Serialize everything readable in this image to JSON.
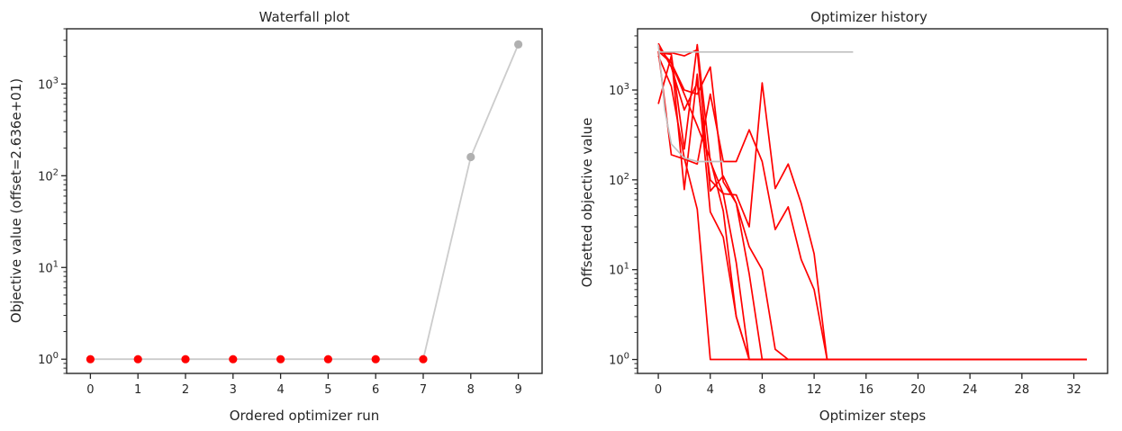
{
  "chart_data": [
    {
      "type": "scatter",
      "title": "Waterfall plot",
      "xlabel": "Ordered optimizer run",
      "ylabel": "Objective value (offset=2.636e+01)",
      "yscale": "log",
      "xlim": [
        -0.5,
        9.5
      ],
      "ylim": [
        0.7,
        4000
      ],
      "xticks": [
        "0",
        "1",
        "2",
        "3",
        "4",
        "5",
        "6",
        "7",
        "8",
        "9"
      ],
      "yticks": [
        {
          "value": 1,
          "label": "10^0"
        },
        {
          "value": 10,
          "label": "10^1"
        },
        {
          "value": 100,
          "label": "10^2"
        },
        {
          "value": 1000,
          "label": "10^3"
        }
      ],
      "line_color": "#cccccc",
      "points": [
        {
          "x": 0,
          "y": 1,
          "color": "#ff0000"
        },
        {
          "x": 1,
          "y": 1,
          "color": "#ff0000"
        },
        {
          "x": 2,
          "y": 1,
          "color": "#ff0000"
        },
        {
          "x": 3,
          "y": 1,
          "color": "#ff0000"
        },
        {
          "x": 4,
          "y": 1,
          "color": "#ff0000"
        },
        {
          "x": 5,
          "y": 1,
          "color": "#ff0000"
        },
        {
          "x": 6,
          "y": 1,
          "color": "#ff0000"
        },
        {
          "x": 7,
          "y": 1,
          "color": "#ff0000"
        },
        {
          "x": 8,
          "y": 160,
          "color": "#b0b0b0"
        },
        {
          "x": 9,
          "y": 2700,
          "color": "#b0b0b0"
        }
      ],
      "grid": false
    },
    {
      "type": "line",
      "title": "Optimizer history",
      "xlabel": "Optimizer steps",
      "ylabel": "Offsetted objective value",
      "yscale": "log",
      "xlim": [
        -1.6,
        34.6
      ],
      "ylim": [
        0.7,
        4800
      ],
      "xticks": [
        "0",
        "4",
        "8",
        "12",
        "16",
        "20",
        "24",
        "28",
        "32"
      ],
      "yticks": [
        {
          "value": 1,
          "label": "10^0"
        },
        {
          "value": 10,
          "label": "10^1"
        },
        {
          "value": 100,
          "label": "10^2"
        },
        {
          "value": 1000,
          "label": "10^3"
        }
      ],
      "grid": false,
      "series": [
        {
          "color": "#ff0000",
          "x": [
            0,
            1,
            2,
            3,
            4,
            5,
            6,
            7,
            8,
            9,
            10,
            11,
            12,
            13,
            14,
            16,
            20,
            24,
            28,
            32,
            33
          ],
          "y": [
            2600,
            2500,
            220,
            3200,
            160,
            70,
            68,
            30,
            1200,
            80,
            150,
            55,
            15,
            1,
            1,
            1,
            1,
            1,
            1,
            1,
            1
          ]
        },
        {
          "color": "#ff0000",
          "x": [
            0,
            1,
            2,
            3,
            4,
            5,
            6,
            7,
            8,
            9,
            10,
            11,
            12,
            13,
            14,
            16,
            20,
            24,
            28,
            32,
            33
          ],
          "y": [
            2700,
            190,
            170,
            150,
            900,
            160,
            160,
            360,
            160,
            28,
            50,
            13,
            6,
            1,
            1,
            1,
            1,
            1,
            1,
            1,
            1
          ]
        },
        {
          "color": "#ff0000",
          "x": [
            0,
            1,
            2,
            3,
            4,
            5,
            6,
            7,
            8,
            9,
            10,
            11,
            12,
            13,
            14,
            16,
            20,
            24,
            28,
            32,
            33
          ],
          "y": [
            2600,
            2600,
            2400,
            2800,
            75,
            110,
            55,
            18,
            10,
            1.3,
            1,
            1,
            1,
            1,
            1,
            1,
            1,
            1,
            1,
            1,
            1
          ]
        },
        {
          "color": "#ff0000",
          "x": [
            0,
            1,
            2,
            3,
            4,
            5,
            6,
            7,
            8,
            9,
            10,
            11,
            12,
            13,
            14,
            16,
            20,
            24,
            28,
            32,
            33
          ],
          "y": [
            700,
            2400,
            78,
            1500,
            44,
            23,
            3,
            1,
            1,
            1,
            1,
            1,
            1,
            1,
            1,
            1,
            1,
            1,
            1,
            1,
            1
          ]
        },
        {
          "color": "#ff0000",
          "x": [
            0,
            1,
            2,
            3,
            4,
            5,
            6,
            7,
            8,
            9,
            10,
            11,
            12,
            13,
            14,
            16,
            20,
            24,
            28,
            32,
            33
          ],
          "y": [
            2400,
            1100,
            175,
            47,
            1,
            1,
            1,
            1,
            1,
            1,
            1,
            1,
            1,
            1,
            1,
            1,
            1,
            1,
            1,
            1,
            1
          ]
        },
        {
          "color": "#ff0000",
          "x": [
            0,
            1,
            2,
            3,
            4,
            5,
            6,
            7,
            8,
            9,
            10,
            11,
            12,
            13,
            14,
            16,
            20,
            24,
            28,
            32,
            33
          ],
          "y": [
            3000,
            2000,
            1000,
            900,
            1800,
            95,
            55,
            9,
            1,
            1,
            1,
            1,
            1,
            1,
            1,
            1,
            1,
            1,
            1,
            1,
            1
          ]
        },
        {
          "color": "#ff0000",
          "x": [
            0,
            1,
            2,
            3,
            4,
            5,
            6,
            7,
            8,
            9,
            10,
            11,
            12,
            13,
            14,
            16,
            20,
            24,
            28,
            32,
            33
          ],
          "y": [
            3300,
            1800,
            600,
            1200,
            100,
            70,
            12,
            1,
            1,
            1,
            1,
            1,
            1,
            1,
            1,
            1,
            1,
            1,
            1,
            1,
            1
          ]
        },
        {
          "color": "#ff0000",
          "x": [
            0,
            1,
            2,
            3,
            4,
            5,
            6,
            7,
            8,
            9,
            10,
            11,
            12,
            13,
            14,
            16,
            20,
            24,
            28,
            29
          ],
          "y": [
            2700,
            2000,
            900,
            400,
            170,
            45,
            3,
            1,
            1,
            1,
            1,
            1,
            1,
            1,
            1,
            1,
            1,
            1,
            1,
            1
          ]
        },
        {
          "color": "#c0c0c0",
          "x": [
            0,
            1,
            2,
            3,
            4,
            5,
            6,
            7,
            8,
            9,
            10,
            11,
            12,
            13,
            14,
            15
          ],
          "y": [
            2650,
            2650,
            2650,
            2650,
            2650,
            2650,
            2650,
            2650,
            2650,
            2650,
            2650,
            2650,
            2650,
            2650,
            2650,
            2650
          ]
        },
        {
          "color": "#c0c0c0",
          "x": [
            0,
            0.5,
            1,
            2,
            3,
            4,
            5
          ],
          "y": [
            3200,
            600,
            250,
            175,
            160,
            160,
            160
          ]
        }
      ]
    }
  ]
}
